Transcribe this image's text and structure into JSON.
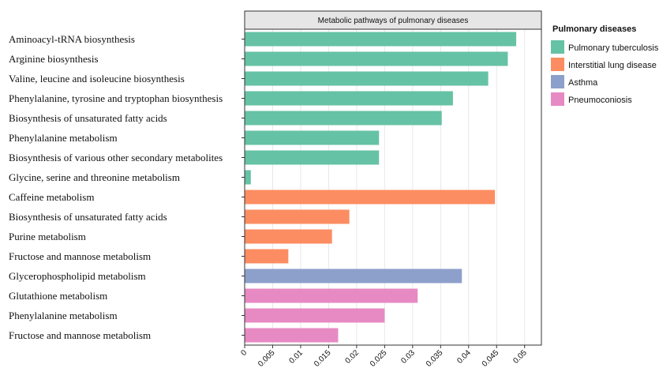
{
  "chart_data": {
    "type": "bar",
    "orientation": "horizontal",
    "title": "Metabolic pathways of pulmonary diseases",
    "xlabel": "",
    "ylabel": "",
    "xlim": [
      0,
      0.053
    ],
    "xticks": [
      0,
      0.005,
      0.01,
      0.015,
      0.02,
      0.025,
      0.03,
      0.035,
      0.04,
      0.045,
      0.05
    ],
    "xtick_labels": [
      "0",
      "0.005",
      "0.01",
      "0.015",
      "0.02",
      "0.025",
      "0.03",
      "0.035",
      "0.04",
      "0.045",
      "0.05"
    ],
    "grid": "vertical",
    "legend": {
      "title": "Pulmonary diseases",
      "placement": "right",
      "items": [
        {
          "name": "Pulmonary tuberculosis",
          "color": "#66c2a5"
        },
        {
          "name": "Interstitial lung disease",
          "color": "#fc8d62"
        },
        {
          "name": "Asthma",
          "color": "#8da0cb"
        },
        {
          "name": "Pneumoconiosis",
          "color": "#e78ac3"
        }
      ]
    },
    "bars": [
      {
        "label": "Aminoacyl-tRNA biosynthesis",
        "value": 0.0485,
        "group": "Pulmonary tuberculosis"
      },
      {
        "label": "Arginine biosynthesis",
        "value": 0.047,
        "group": "Pulmonary tuberculosis"
      },
      {
        "label": "Valine, leucine and isoleucine biosynthesis",
        "value": 0.0435,
        "group": "Pulmonary tuberculosis"
      },
      {
        "label": "Phenylalanine, tyrosine and tryptophan biosynthesis",
        "value": 0.0372,
        "group": "Pulmonary tuberculosis"
      },
      {
        "label": "Biosynthesis of unsaturated fatty acids",
        "value": 0.0352,
        "group": "Pulmonary tuberculosis"
      },
      {
        "label": "Phenylalanine metabolism",
        "value": 0.024,
        "group": "Pulmonary tuberculosis"
      },
      {
        "label": "Biosynthesis of various other secondary metabolites",
        "value": 0.024,
        "group": "Pulmonary tuberculosis"
      },
      {
        "label": "Glycine, serine and threonine metabolism",
        "value": 0.0011,
        "group": "Pulmonary tuberculosis"
      },
      {
        "label": "Caffeine metabolism",
        "value": 0.0447,
        "group": "Interstitial lung disease"
      },
      {
        "label": "Biosynthesis of unsaturated fatty acids",
        "value": 0.0187,
        "group": "Interstitial lung disease"
      },
      {
        "label": "Purine metabolism",
        "value": 0.0156,
        "group": "Interstitial lung disease"
      },
      {
        "label": "Fructose and mannose metabolism",
        "value": 0.0078,
        "group": "Interstitial lung disease"
      },
      {
        "label": "Glycerophospholipid metabolism",
        "value": 0.0388,
        "group": "Asthma"
      },
      {
        "label": "Glutathione metabolism",
        "value": 0.0309,
        "group": "Pneumoconiosis"
      },
      {
        "label": "Phenylalanine metabolism",
        "value": 0.025,
        "group": "Pneumoconiosis"
      },
      {
        "label": "Fructose and mannose metabolism",
        "value": 0.0167,
        "group": "Pneumoconiosis"
      }
    ]
  }
}
